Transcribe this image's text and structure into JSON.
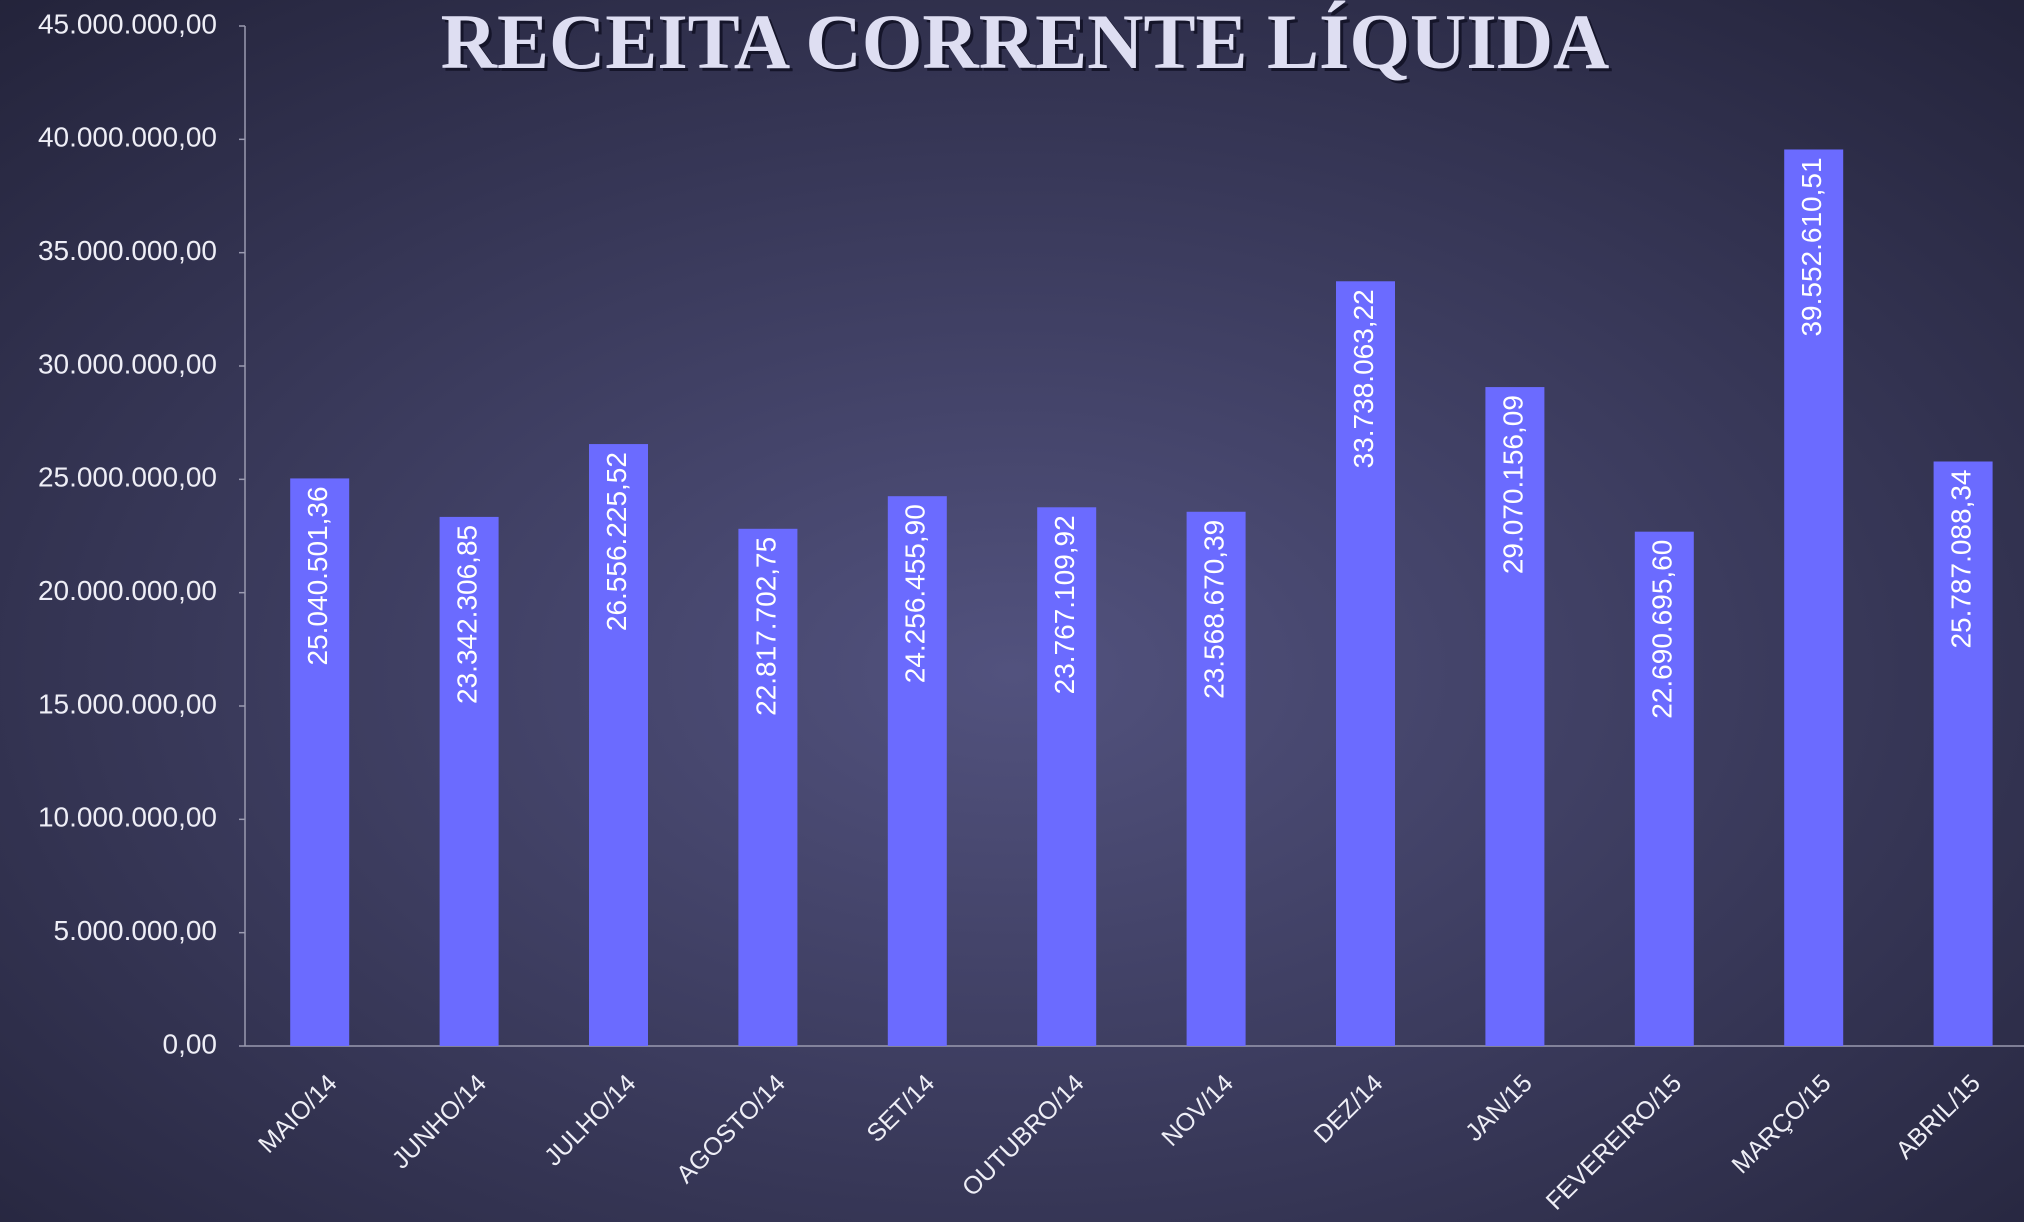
{
  "chart_data": {
    "type": "bar",
    "title": "RECEITA CORRENTE LÍQUIDA",
    "categories": [
      "MAIO/14",
      "JUNHO/14",
      "JULHO/14",
      "AGOSTO/14",
      "SET/14",
      "OUTUBRO/14",
      "NOV/14",
      "DEZ/14",
      "JAN/15",
      "FEVEREIRO/15",
      "MARÇO/15",
      "ABRIL/15"
    ],
    "values": [
      25040501.36,
      23342306.85,
      26556225.52,
      22817702.75,
      24256455.9,
      23767109.92,
      23568670.39,
      33738063.22,
      29070156.09,
      22690695.6,
      39552610.51,
      25787088.34
    ],
    "value_labels": [
      "25.040.501,36",
      "23.342.306,85",
      "26.556.225,52",
      "22.817.702,75",
      "24.256.455,90",
      "23.767.109,92",
      "23.568.670,39",
      "33.738.063,22",
      "29.070.156,09",
      "22.690.695,60",
      "39.552.610,51",
      "25.787.088,34"
    ],
    "color": "#6b6bff",
    "ylim": [
      0,
      45000000
    ],
    "yticks": [
      {
        "value": 0,
        "label": "0,00"
      },
      {
        "value": 5000000,
        "label": "5.000.000,00"
      },
      {
        "value": 10000000,
        "label": "10.000.000,00"
      },
      {
        "value": 15000000,
        "label": "15.000.000,00"
      },
      {
        "value": 20000000,
        "label": "20.000.000,00"
      },
      {
        "value": 25000000,
        "label": "25.000.000,00"
      },
      {
        "value": 30000000,
        "label": "30.000.000,00"
      },
      {
        "value": 35000000,
        "label": "35.000.000,00"
      },
      {
        "value": 40000000,
        "label": "40.000.000,00"
      },
      {
        "value": 45000000,
        "label": "45.000.000,00"
      }
    ],
    "grid": false
  }
}
